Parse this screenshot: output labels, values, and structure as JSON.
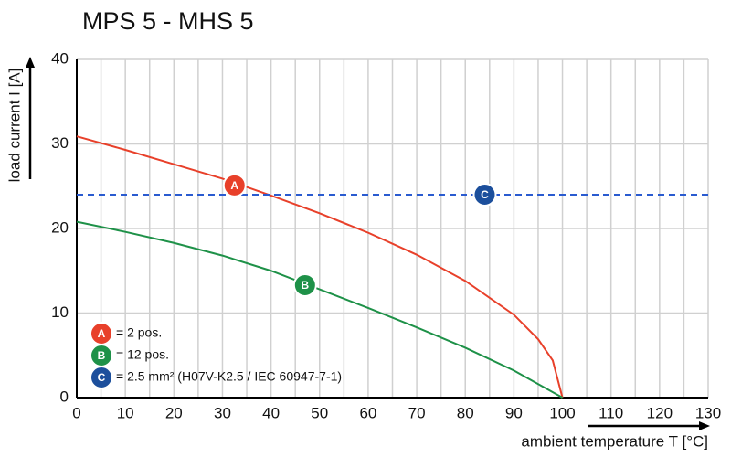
{
  "chart_data": {
    "type": "line",
    "title": "MPS 5 - MHS 5",
    "x_label": "ambient temperature T [°C]",
    "y_label": "load current I [A]",
    "xlim": [
      0,
      130
    ],
    "ylim": [
      0,
      40
    ],
    "xticks": [
      0,
      10,
      20,
      30,
      40,
      50,
      60,
      70,
      80,
      90,
      100,
      110,
      120,
      130
    ],
    "xminorticks": [
      5,
      15,
      25,
      35,
      45,
      55,
      65,
      75,
      85,
      95,
      105,
      115,
      125
    ],
    "yticks": [
      0,
      10,
      20,
      30,
      40
    ],
    "grid": true,
    "series": [
      {
        "name": "= 2 pos.",
        "marker_label": "A",
        "color": "#e8402a",
        "x": [
          0,
          10,
          20,
          30,
          40,
          50,
          60,
          70,
          80,
          90,
          95,
          98,
          100
        ],
        "values": [
          30.9,
          29.3,
          27.6,
          25.9,
          23.9,
          21.8,
          19.5,
          16.9,
          13.8,
          9.8,
          6.9,
          4.4,
          0
        ],
        "marker": {
          "x": 32.5,
          "y": 25.1
        }
      },
      {
        "name": "= 12 pos.",
        "marker_label": "B",
        "color": "#1e9148",
        "x": [
          0,
          10,
          20,
          30,
          40,
          50,
          60,
          70,
          80,
          90,
          100
        ],
        "values": [
          20.8,
          19.6,
          18.3,
          16.8,
          15.0,
          12.8,
          10.6,
          8.3,
          5.9,
          3.2,
          0
        ],
        "marker": {
          "x": 47,
          "y": 13.3
        }
      },
      {
        "name": "= 2.5 mm² (H07V-K2.5 / IEC 60947-7-1)",
        "marker_label": "C",
        "color": "#1c4f9c",
        "dashed": true,
        "x": [
          0,
          130
        ],
        "values": [
          24,
          24
        ],
        "marker": {
          "x": 84,
          "y": 24
        }
      }
    ]
  }
}
